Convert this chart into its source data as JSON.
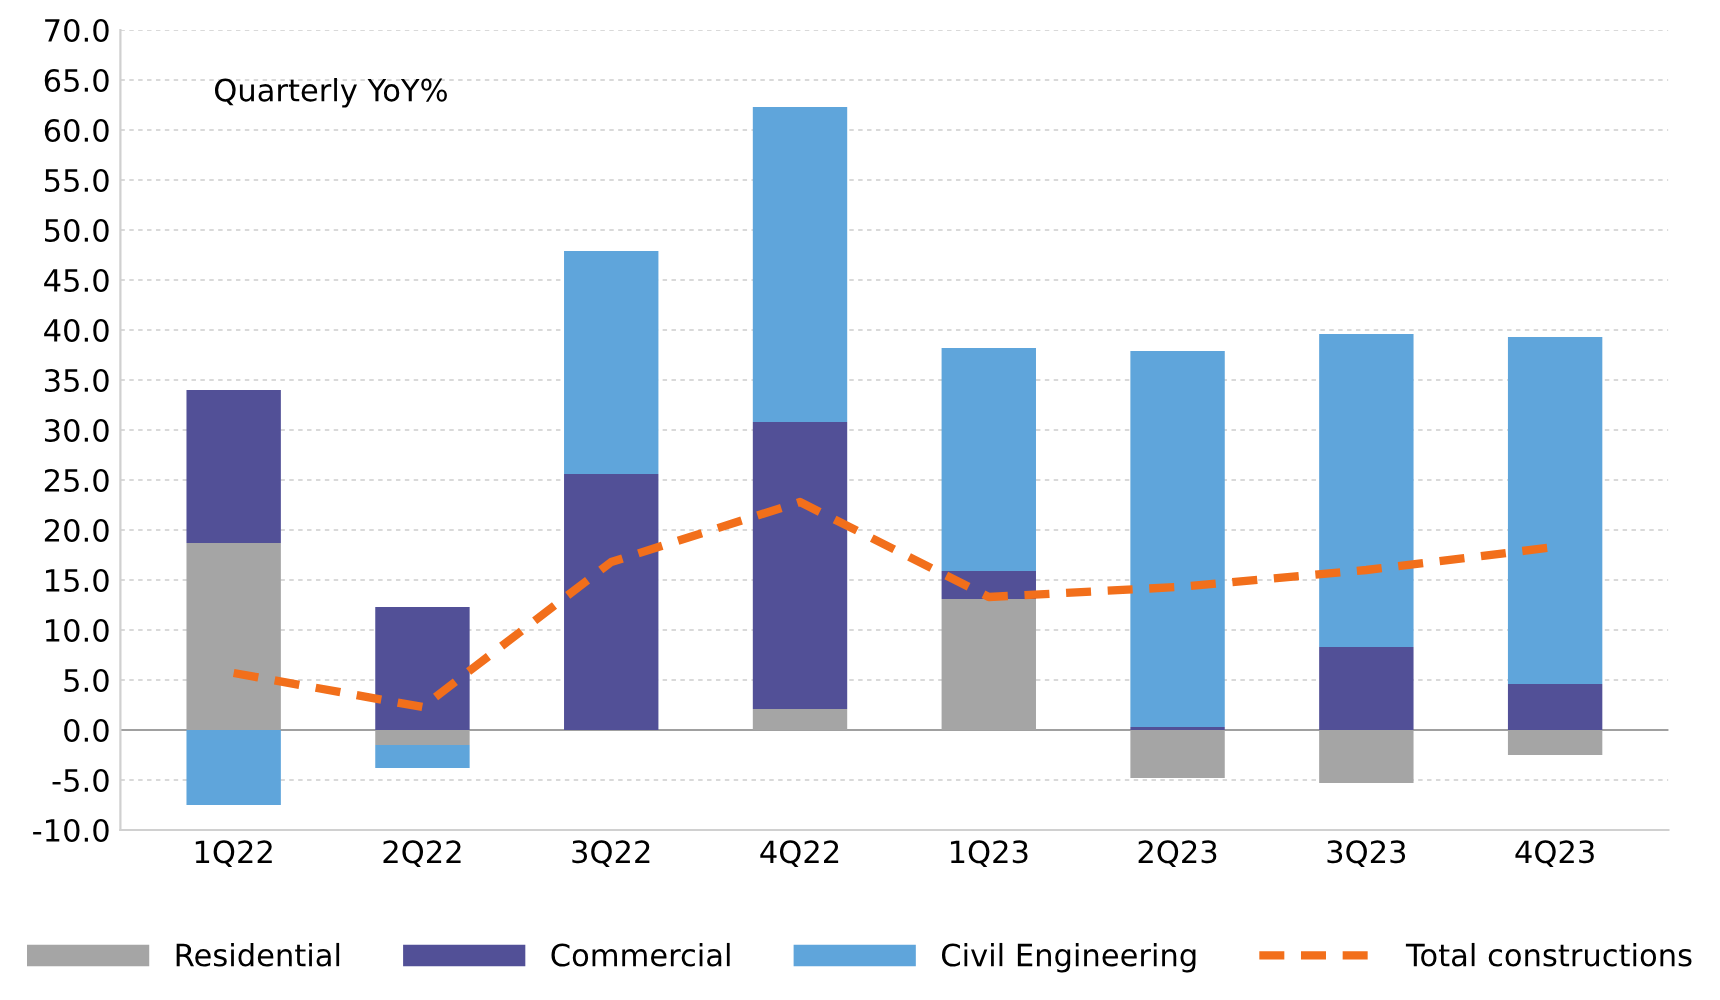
{
  "chart_data": {
    "type": "bar",
    "stacked": true,
    "categories": [
      "1Q22",
      "2Q22",
      "3Q22",
      "4Q22",
      "1Q23",
      "2Q23",
      "3Q23",
      "4Q23"
    ],
    "series": [
      {
        "name": "Residential",
        "color": "#a5a5a5",
        "values": [
          18.7,
          -1.5,
          0,
          2.1,
          13.1,
          -4.8,
          -5.3,
          -2.5
        ]
      },
      {
        "name": "Commercial",
        "color": "#525097",
        "values": [
          15.3,
          12.3,
          25.6,
          28.7,
          2.8,
          0.3,
          8.3,
          4.6
        ]
      },
      {
        "name": "Civil Engineering",
        "color": "#5fa5db",
        "values": [
          -7.5,
          -2.3,
          22.3,
          31.5,
          22.3,
          37.6,
          31.3,
          34.7
        ]
      },
      {
        "name": "Total constructions",
        "type": "line",
        "color": "#f26f1b",
        "line_style": "dashed",
        "marker": "none",
        "values": [
          5.7,
          2.3,
          16.8,
          22.8,
          13.3,
          14.3,
          16.0,
          18.3
        ]
      }
    ],
    "ylim": [
      -10,
      70
    ],
    "yticks": [
      {
        "value": -10,
        "label": "-10.0"
      },
      {
        "value": -5,
        "label": "-5.0"
      },
      {
        "value": 0,
        "label": "0.0"
      },
      {
        "value": 5,
        "label": "5.0"
      },
      {
        "value": 10,
        "label": "10.0"
      },
      {
        "value": 15,
        "label": "15.0"
      },
      {
        "value": 20,
        "label": "20.0"
      },
      {
        "value": 25,
        "label": "25.0"
      },
      {
        "value": 30,
        "label": "30.0"
      },
      {
        "value": 35,
        "label": "35.0"
      },
      {
        "value": 40,
        "label": "40.0"
      },
      {
        "value": 45,
        "label": "45.0"
      },
      {
        "value": 50,
        "label": "50.0"
      },
      {
        "value": 55,
        "label": "55.0"
      },
      {
        "value": 60,
        "label": "60.0"
      },
      {
        "value": 65,
        "label": "65.0"
      },
      {
        "value": 70,
        "label": "70.0"
      }
    ],
    "grid": "y",
    "legend": "bottom",
    "annotations": [
      "Quarterly YoY%"
    ]
  }
}
